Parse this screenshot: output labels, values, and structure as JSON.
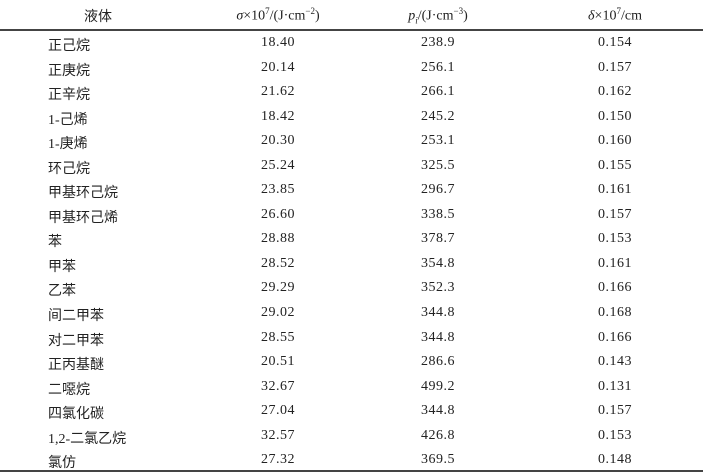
{
  "table": {
    "headers": {
      "liquid": "液体",
      "sigma": {
        "symbol": "σ",
        "times": "×10",
        "exp": "7",
        "unit": "/(J·cm",
        "unit_exp": "−2",
        "close": ")"
      },
      "pi": {
        "symbol": "p",
        "sub": "i",
        "unit": "/(J·cm",
        "unit_exp": "−3",
        "close": ")"
      },
      "delta": {
        "symbol": "δ",
        "times": "×10",
        "exp": "7",
        "unit": "/cm"
      }
    },
    "rows": [
      {
        "liquid": "正己烷",
        "sigma": "18.40",
        "pi": "238.9",
        "delta": "0.154"
      },
      {
        "liquid": "正庚烷",
        "sigma": "20.14",
        "pi": "256.1",
        "delta": "0.157"
      },
      {
        "liquid": "正辛烷",
        "sigma": "21.62",
        "pi": "266.1",
        "delta": "0.162"
      },
      {
        "liquid": "1-己烯",
        "sigma": "18.42",
        "pi": "245.2",
        "delta": "0.150"
      },
      {
        "liquid": "1-庚烯",
        "sigma": "20.30",
        "pi": "253.1",
        "delta": "0.160"
      },
      {
        "liquid": "环己烷",
        "sigma": "25.24",
        "pi": "325.5",
        "delta": "0.155"
      },
      {
        "liquid": "甲基环己烷",
        "sigma": "23.85",
        "pi": "296.7",
        "delta": "0.161"
      },
      {
        "liquid": "甲基环己烯",
        "sigma": "26.60",
        "pi": "338.5",
        "delta": "0.157"
      },
      {
        "liquid": "苯",
        "sigma": "28.88",
        "pi": "378.7",
        "delta": "0.153"
      },
      {
        "liquid": "甲苯",
        "sigma": "28.52",
        "pi": "354.8",
        "delta": "0.161"
      },
      {
        "liquid": "乙苯",
        "sigma": "29.29",
        "pi": "352.3",
        "delta": "0.166"
      },
      {
        "liquid": "间二甲苯",
        "sigma": "29.02",
        "pi": "344.8",
        "delta": "0.168"
      },
      {
        "liquid": "对二甲苯",
        "sigma": "28.55",
        "pi": "344.8",
        "delta": "0.166"
      },
      {
        "liquid": "正丙基醚",
        "sigma": "20.51",
        "pi": "286.6",
        "delta": "0.143"
      },
      {
        "liquid": "二噁烷",
        "sigma": "32.67",
        "pi": "499.2",
        "delta": "0.131"
      },
      {
        "liquid": "四氯化碳",
        "sigma": "27.04",
        "pi": "344.8",
        "delta": "0.157"
      },
      {
        "liquid": "1,2-二氯乙烷",
        "sigma": "32.57",
        "pi": "426.8",
        "delta": "0.153"
      },
      {
        "liquid": "氯仿",
        "sigma": "27.32",
        "pi": "369.5",
        "delta": "0.148"
      }
    ]
  }
}
